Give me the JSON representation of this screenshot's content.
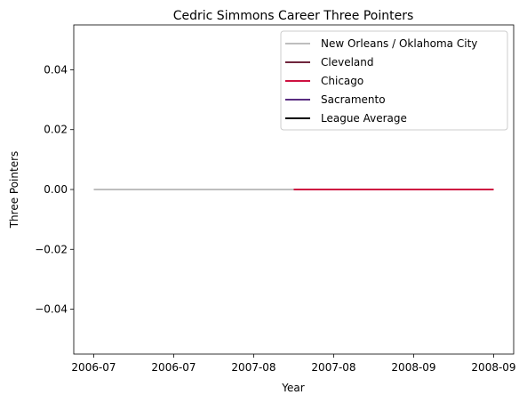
{
  "chart_data": {
    "type": "line",
    "title": "Cedric Simmons Career Three Pointers",
    "xlabel": "Year",
    "ylabel": "Three Pointers",
    "x_tick_labels": [
      "2006-07",
      "2006-07",
      "2007-08",
      "2007-08",
      "2008-09",
      "2008-09"
    ],
    "y_ticks": [
      "0.04",
      "0.02",
      "0.00",
      "−0.02",
      "−0.04"
    ],
    "y_tick_values": [
      0.04,
      0.02,
      0.0,
      -0.02,
      -0.04
    ],
    "ylim": [
      -0.055,
      0.055
    ],
    "grid": false,
    "legend_position": "upper right",
    "series": [
      {
        "name": "New Orleans / Oklahoma City",
        "color": "#BEBEBE",
        "x": [
          0,
          1
        ],
        "y": [
          0,
          0
        ]
      },
      {
        "name": "Cleveland",
        "color": "#6F263D",
        "x": [],
        "y": []
      },
      {
        "name": "Chicago",
        "color": "#CE1141",
        "x": [
          1,
          2
        ],
        "y": [
          0,
          0
        ]
      },
      {
        "name": "Sacramento",
        "color": "#5A2D81",
        "x": [],
        "y": []
      },
      {
        "name": "League Average",
        "color": "#000000",
        "x": [],
        "y": []
      }
    ]
  }
}
